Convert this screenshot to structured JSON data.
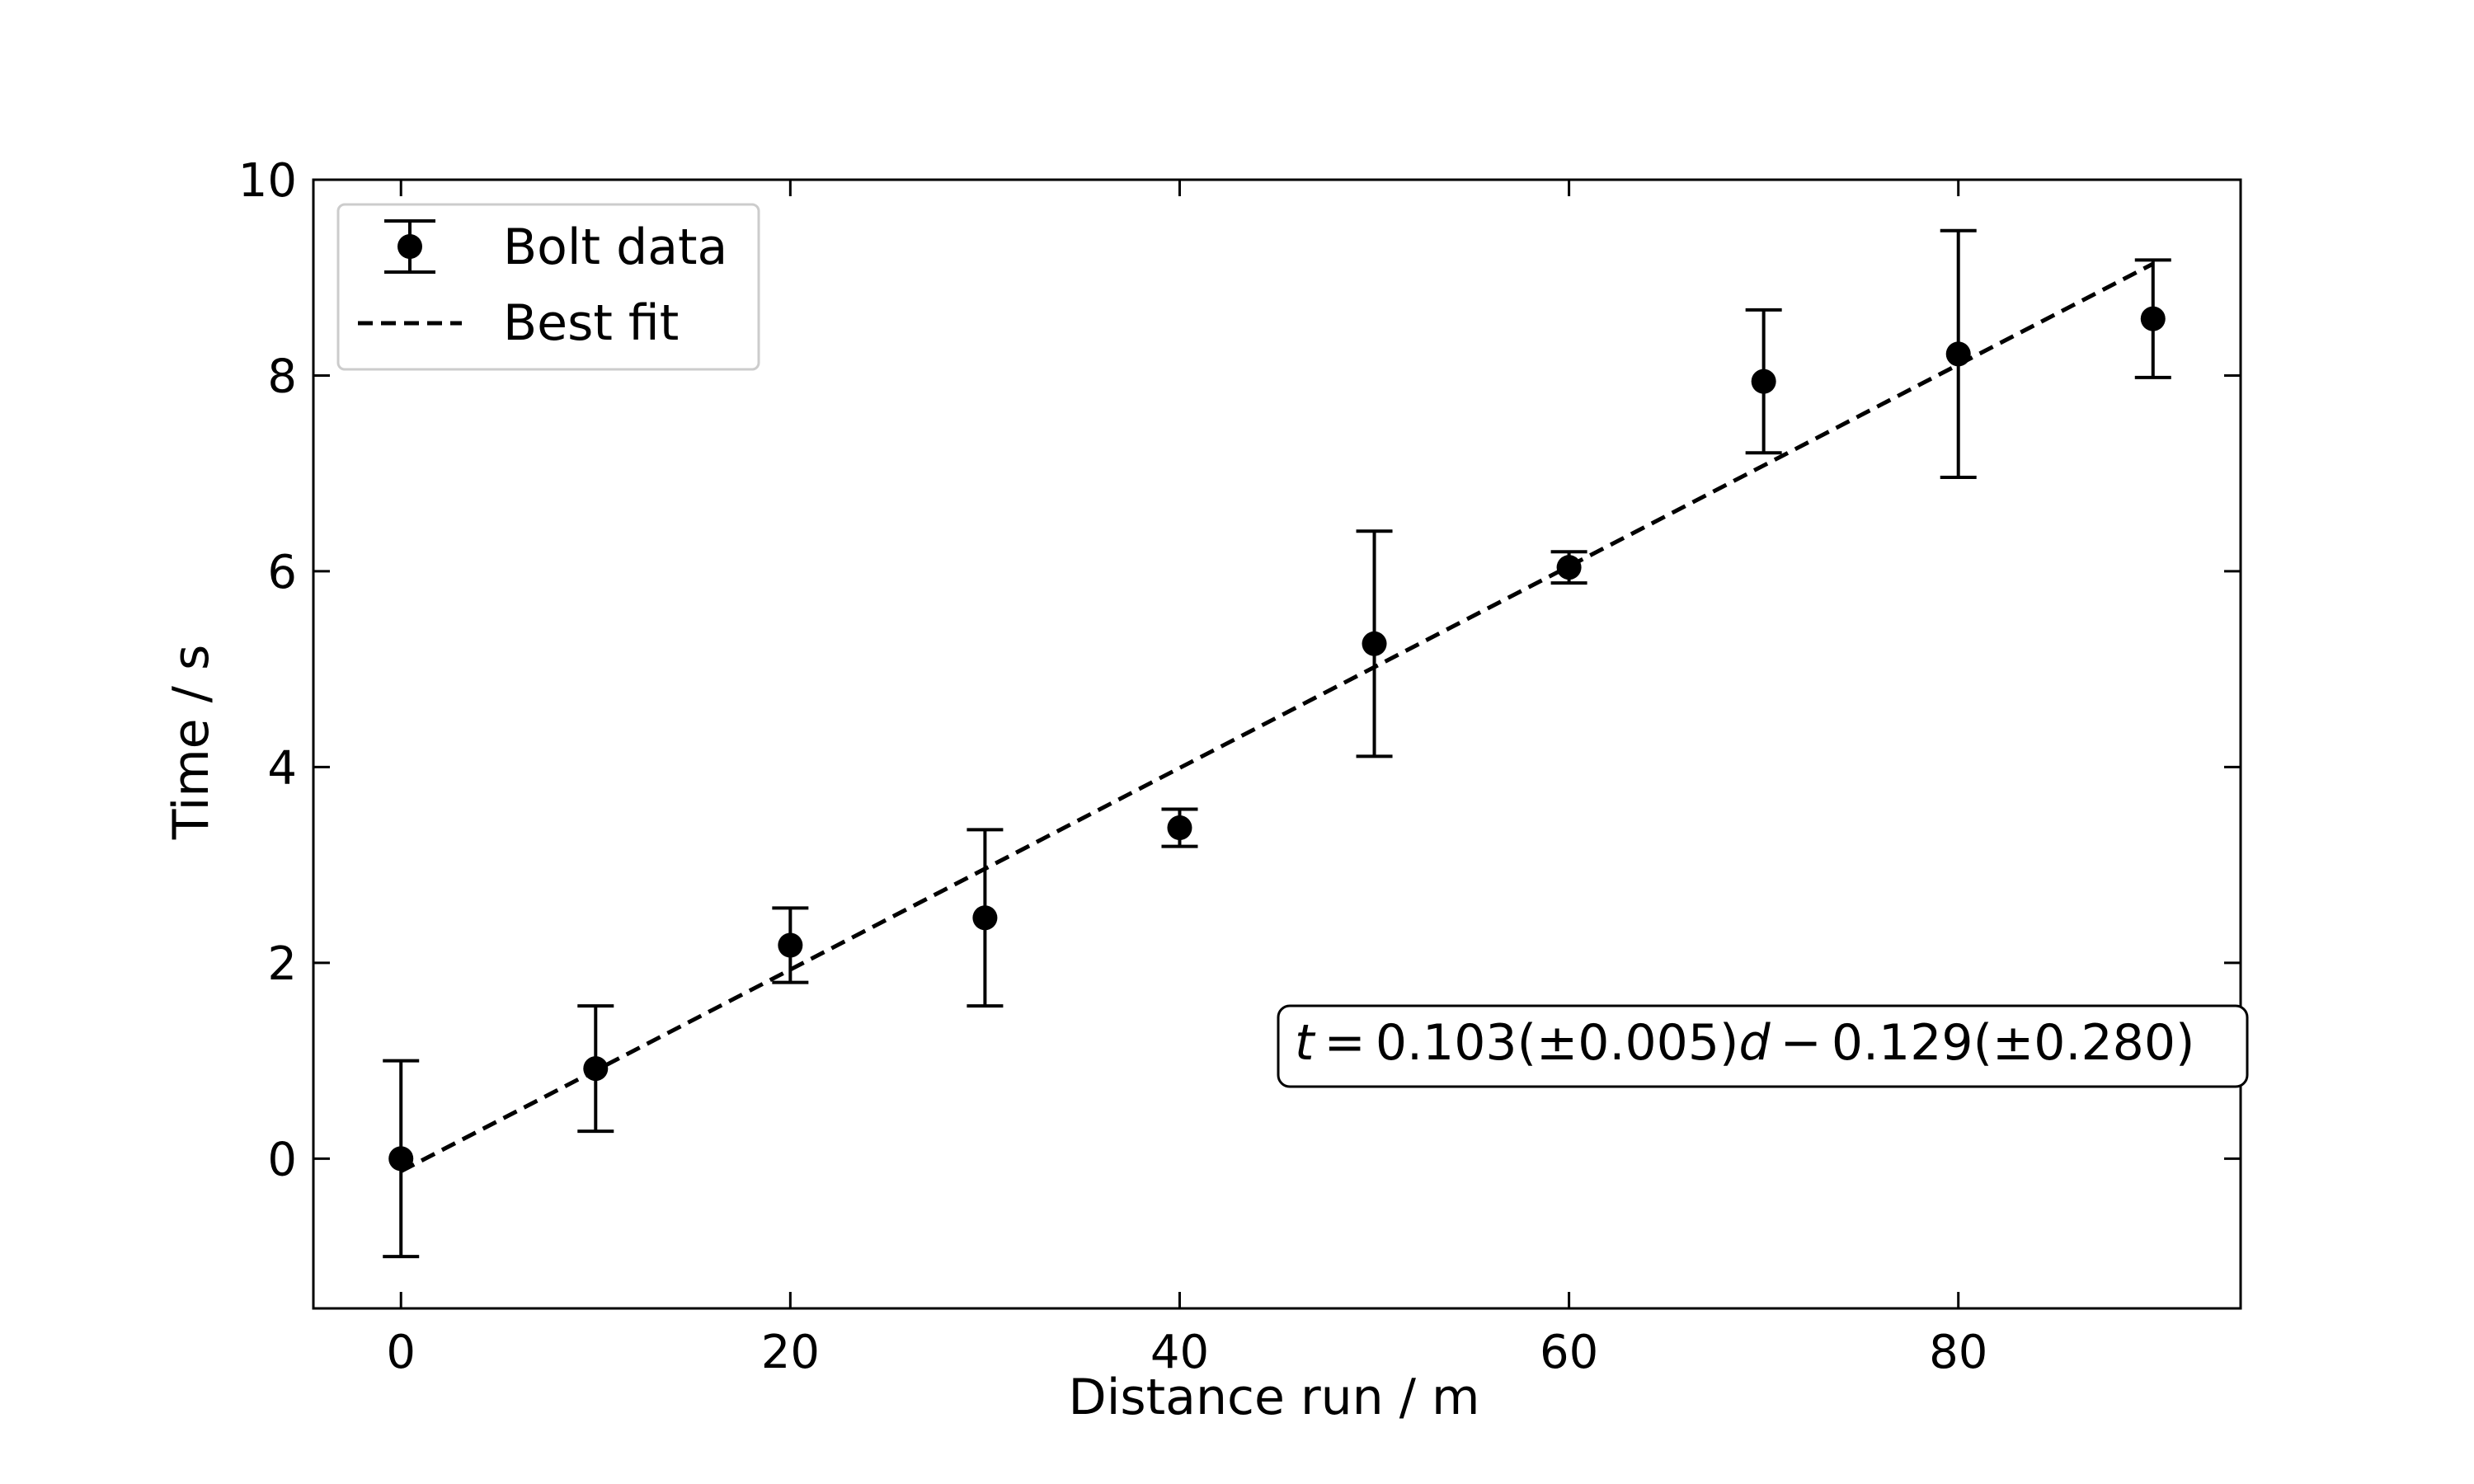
{
  "chart_data": {
    "type": "scatter",
    "xlabel": "Distance run / m",
    "ylabel": "Time / s",
    "xlim": [
      -4.5,
      94.5
    ],
    "ylim": [
      -1.53,
      10.0
    ],
    "xticks": [
      0,
      20,
      40,
      60,
      80
    ],
    "yticks": [
      0,
      2,
      4,
      6,
      8,
      10
    ],
    "grid": false,
    "legend_position": "top-left",
    "series": [
      {
        "name": "Bolt data",
        "kind": "errorbar",
        "x": [
          0,
          10,
          20,
          30,
          40,
          50,
          60,
          70,
          80,
          90
        ],
        "y": [
          0.0,
          0.92,
          2.18,
          2.46,
          3.38,
          5.26,
          6.04,
          7.94,
          8.22,
          8.58
        ],
        "yerr": [
          1.0,
          0.64,
          0.38,
          0.9,
          0.19,
          1.15,
          0.16,
          0.73,
          1.26,
          0.6
        ]
      },
      {
        "name": "Best fit",
        "kind": "line",
        "style": "dashed",
        "x": [
          0,
          90
        ],
        "y": [
          -0.129,
          9.141
        ]
      }
    ],
    "annotation": {
      "t": "t",
      "eq": "=",
      "coef": "0.103(±0.005)",
      "d": "d",
      "minus": "−",
      "intercept": "0.129(±0.280)"
    },
    "colors": {
      "marker": "#000000",
      "line": "#000000"
    }
  }
}
